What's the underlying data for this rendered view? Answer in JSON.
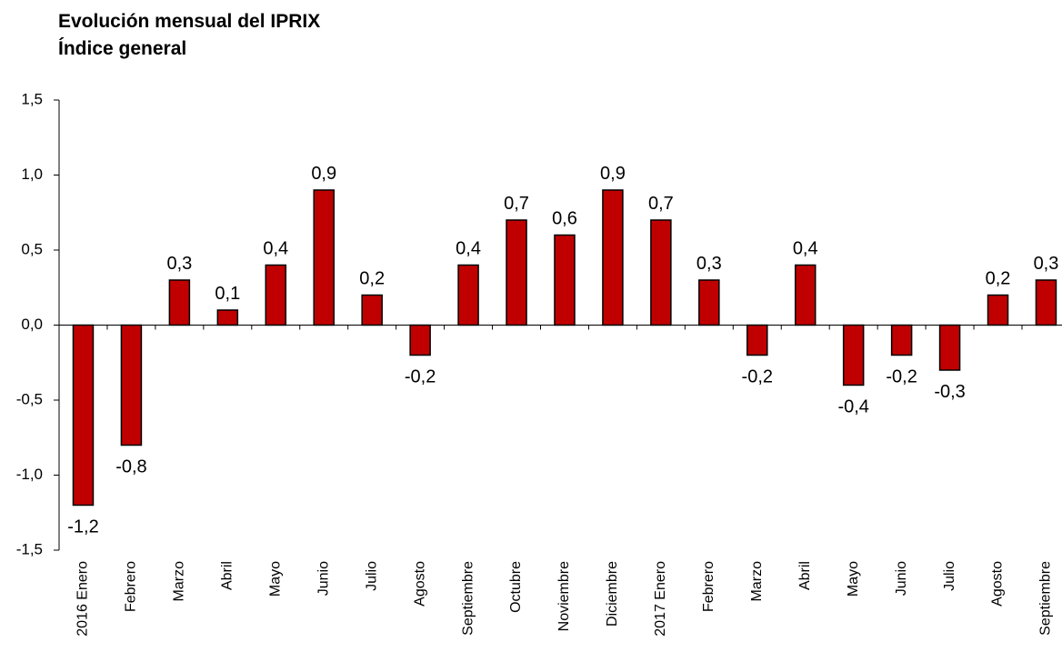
{
  "chart_data": {
    "type": "bar",
    "title": "Evolución mensual del IPRIX",
    "subtitle": "Índice general",
    "categories": [
      "2016 Enero",
      "Febrero",
      "Marzo",
      "Abril",
      "Mayo",
      "Junio",
      "Julio",
      "Agosto",
      "Septiembre",
      "Octubre",
      "Noviembre",
      "Diciembre",
      "2017 Enero",
      "Febrero",
      "Marzo",
      "Abril",
      "Mayo",
      "Junio",
      "Julio",
      "Agosto",
      "Septiembre"
    ],
    "values": [
      -1.2,
      -0.8,
      0.3,
      0.1,
      0.4,
      0.9,
      0.2,
      -0.2,
      0.4,
      0.7,
      0.6,
      0.9,
      0.7,
      0.3,
      -0.2,
      0.4,
      -0.4,
      -0.2,
      -0.3,
      0.2,
      0.3
    ],
    "value_labels": [
      "-1,2",
      "-0,8",
      "0,3",
      "0,1",
      "0,4",
      "0,9",
      "0,2",
      "-0,2",
      "0,4",
      "0,7",
      "0,6",
      "0,9",
      "0,7",
      "0,3",
      "-0,2",
      "0,4",
      "-0,4",
      "-0,2",
      "-0,3",
      "0,2",
      "0,3"
    ],
    "color": "#c00000",
    "ylim": [
      -1.5,
      1.5
    ],
    "yticks": [
      {
        "value": -1.5,
        "label": "-1,5"
      },
      {
        "value": -1.0,
        "label": "-1,0"
      },
      {
        "value": -0.5,
        "label": "-0,5"
      },
      {
        "value": 0,
        "label": "0,0"
      },
      {
        "value": 0.5,
        "label": "0,5"
      },
      {
        "value": 1.0,
        "label": "1,0"
      },
      {
        "value": 1.5,
        "label": "1,5"
      }
    ],
    "grid": false
  }
}
